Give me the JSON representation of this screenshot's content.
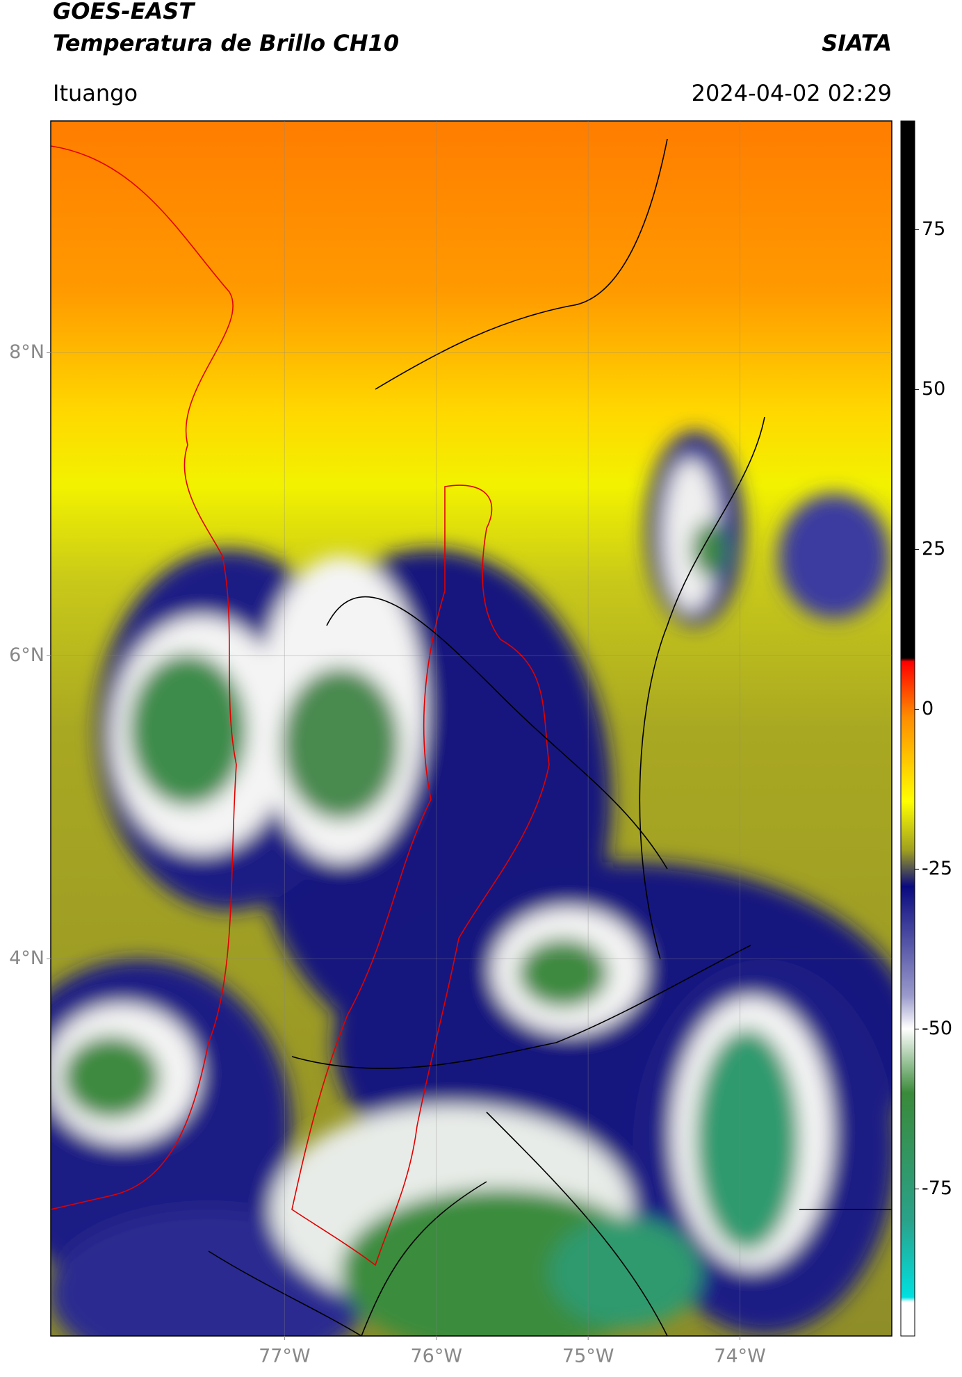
{
  "header": {
    "title": "GOES-EAST",
    "subtitle": "Temperatura de Brillo CH10",
    "source": "SIATA",
    "region": "Ituango",
    "datetime": "2024-04-02 02:29"
  },
  "map": {
    "xlim": [
      -78.54,
      -73.0
    ],
    "ylim": [
      1.51,
      9.53
    ],
    "xticks": [
      {
        "value": -77,
        "label": "77°W"
      },
      {
        "value": -76,
        "label": "76°W"
      },
      {
        "value": -75,
        "label": "75°W"
      },
      {
        "value": -74,
        "label": "74°W"
      }
    ],
    "yticks": [
      {
        "value": 8,
        "label": "8°N"
      },
      {
        "value": 6,
        "label": "6°N"
      },
      {
        "value": 4,
        "label": "4°N"
      }
    ]
  },
  "colorbar": {
    "lim": [
      -98,
      92
    ],
    "ticks": [
      75,
      50,
      25,
      0,
      -25,
      -50,
      -75
    ]
  }
}
